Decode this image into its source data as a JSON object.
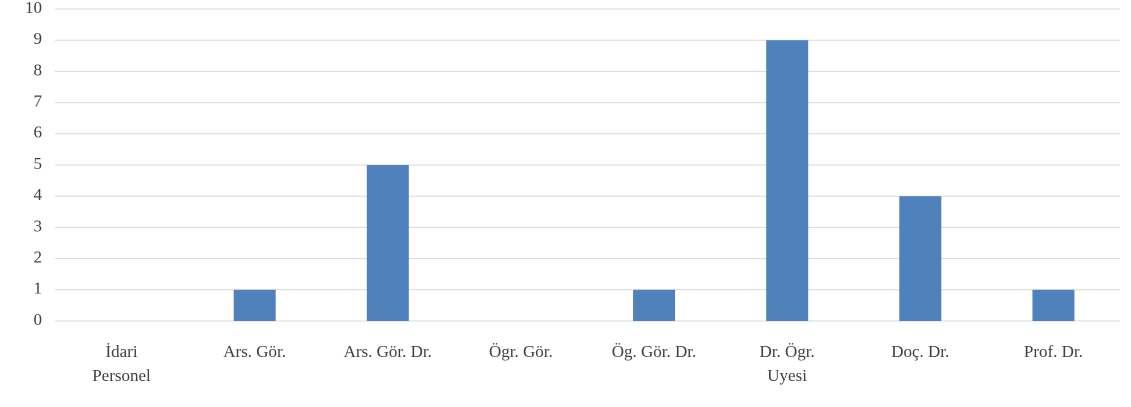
{
  "chart_data": {
    "type": "bar",
    "categories": [
      "İdari\nPersonel",
      "Ars. Gör.",
      "Ars. Gör. Dr.",
      "Ögr. Gör.",
      "Ög. Gör. Dr.",
      "Dr. Ögr.\nUyesi",
      "Doç. Dr.",
      "Prof. Dr."
    ],
    "values": [
      0,
      1,
      5,
      0,
      1,
      9,
      4,
      1
    ],
    "color": "#4f81bd",
    "ylim": [
      0,
      10
    ],
    "yticks": [
      0,
      1,
      2,
      3,
      4,
      5,
      6,
      7,
      8,
      9,
      10
    ],
    "grid": true
  }
}
